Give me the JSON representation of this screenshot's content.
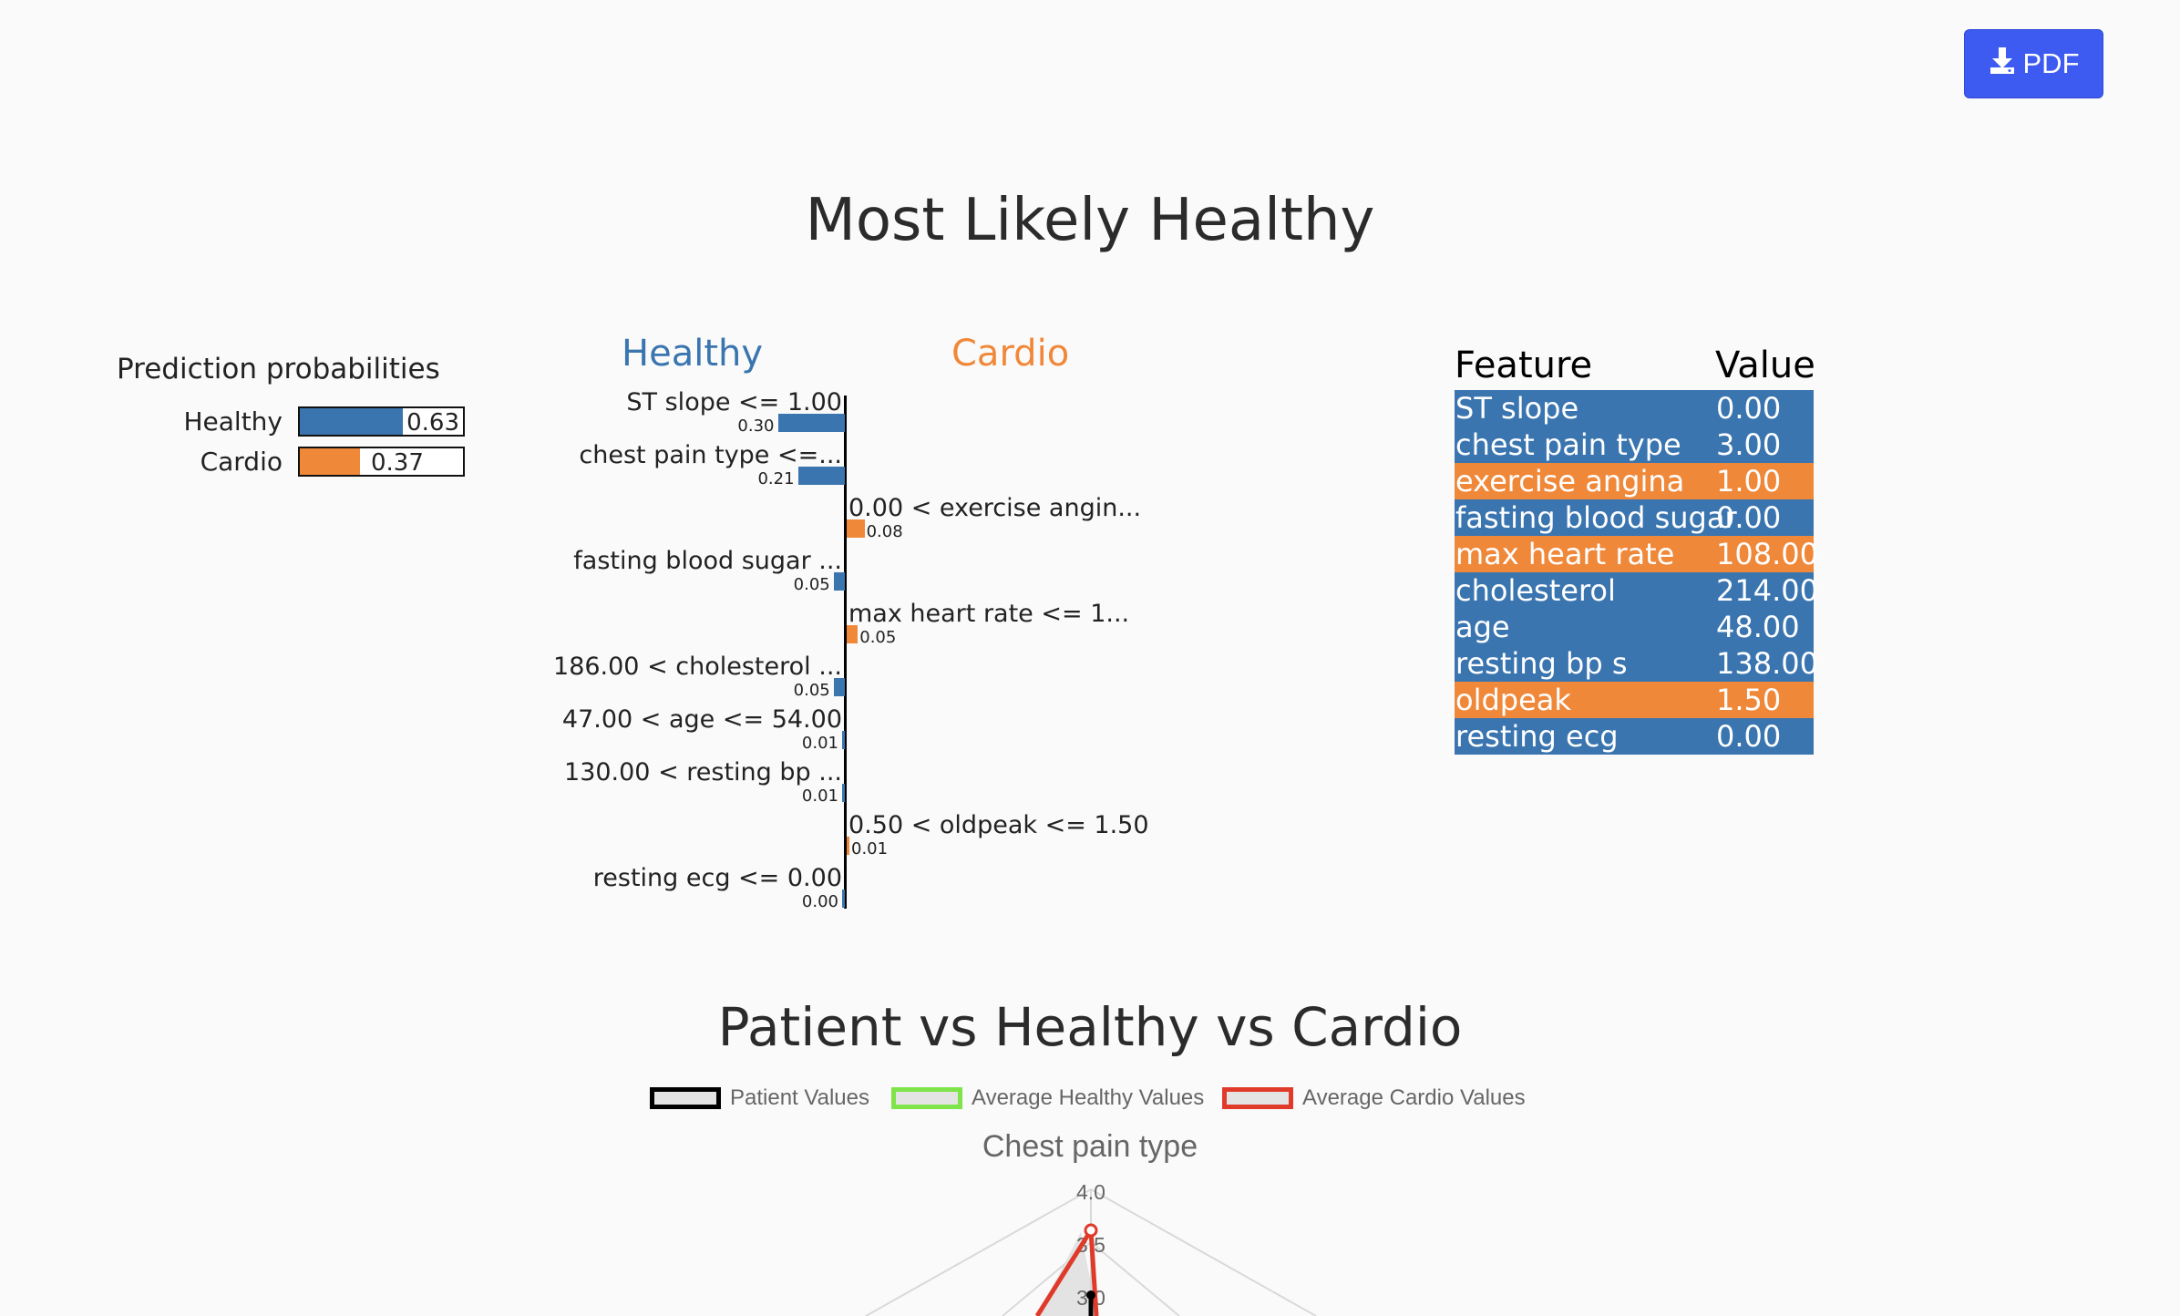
{
  "pdf_button": {
    "label": "PDF",
    "icon": "download-icon"
  },
  "prediction_title": "Most Likely Healthy",
  "probabilities": {
    "title": "Prediction probabilities",
    "items": [
      {
        "label": "Healthy",
        "value": 0.63,
        "display": "0.63",
        "color": "#3a75b0"
      },
      {
        "label": "Cardio",
        "value": 0.37,
        "display": "0.37",
        "color": "#f0883a"
      }
    ]
  },
  "explanation": {
    "left_header": "Healthy",
    "right_header": "Cardio",
    "left_color": "#3a75b0",
    "right_color": "#f0883a",
    "features": [
      {
        "label": "ST slope <= 1.00",
        "value": 0.3,
        "display": "0.30",
        "side": "Healthy"
      },
      {
        "label": "chest pain type <=...",
        "value": 0.21,
        "display": "0.21",
        "side": "Healthy"
      },
      {
        "label": "0.00 < exercise angin...",
        "value": 0.08,
        "display": "0.08",
        "side": "Cardio"
      },
      {
        "label": "fasting blood sugar ...",
        "value": 0.05,
        "display": "0.05",
        "side": "Healthy"
      },
      {
        "label": "max heart rate <= 1...",
        "value": 0.05,
        "display": "0.05",
        "side": "Cardio"
      },
      {
        "label": "186.00 < cholesterol ...",
        "value": 0.05,
        "display": "0.05",
        "side": "Healthy"
      },
      {
        "label": "47.00 < age <= 54.00",
        "value": 0.01,
        "display": "0.01",
        "side": "Healthy"
      },
      {
        "label": "130.00 < resting bp ...",
        "value": 0.01,
        "display": "0.01",
        "side": "Healthy"
      },
      {
        "label": "0.50 < oldpeak <= 1.50",
        "value": 0.01,
        "display": "0.01",
        "side": "Cardio"
      },
      {
        "label": "resting ecg <= 0.00",
        "value": 0.0,
        "display": "0.00",
        "side": "Healthy"
      }
    ]
  },
  "feature_table": {
    "headers": [
      "Feature",
      "Value"
    ],
    "rows": [
      {
        "feature": "ST slope",
        "value": "0.00",
        "side": "Healthy"
      },
      {
        "feature": "chest pain type",
        "value": "3.00",
        "side": "Healthy"
      },
      {
        "feature": "exercise angina",
        "value": "1.00",
        "side": "Cardio"
      },
      {
        "feature": "fasting blood sugar",
        "value": "0.00",
        "side": "Healthy"
      },
      {
        "feature": "max heart rate",
        "value": "108.00",
        "side": "Cardio"
      },
      {
        "feature": "cholesterol",
        "value": "214.00",
        "side": "Healthy"
      },
      {
        "feature": "age",
        "value": "48.00",
        "side": "Healthy"
      },
      {
        "feature": "resting bp s",
        "value": "138.00",
        "side": "Healthy"
      },
      {
        "feature": "oldpeak",
        "value": "1.50",
        "side": "Cardio"
      },
      {
        "feature": "resting ecg",
        "value": "0.00",
        "side": "Healthy"
      }
    ]
  },
  "radar": {
    "title": "Patient vs Healthy vs Cardio",
    "legend": [
      {
        "label": "Patient Values",
        "color": "#000000"
      },
      {
        "label": "Average Healthy Values",
        "color": "#7fe34a"
      },
      {
        "label": "Average Cardio Values",
        "color": "#e03a2a"
      }
    ],
    "axis_title": "Chest pain type",
    "ticks": [
      "4.0",
      "3.5",
      "3.0"
    ]
  },
  "chart_data": {
    "type": "radar",
    "title": "Patient vs Healthy vs Cardio",
    "visible_axis": "Chest pain type",
    "r_ticks": [
      3.0,
      3.5,
      4.0
    ],
    "series": [
      {
        "name": "Patient Values",
        "values": {
          "Chest pain type": 3.0
        }
      },
      {
        "name": "Average Cardio Values",
        "values": {
          "Chest pain type": 3.7
        }
      }
    ]
  }
}
